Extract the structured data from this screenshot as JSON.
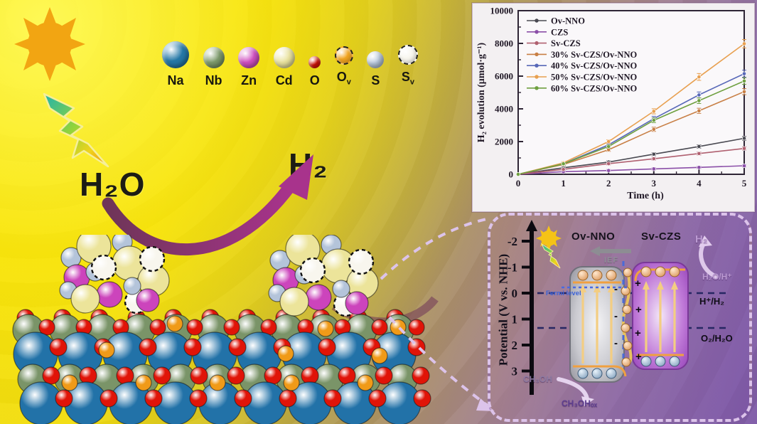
{
  "atom_legend": {
    "items": [
      {
        "symbol": "Na",
        "sub": "",
        "color": "#2477a6",
        "size": 38,
        "vacancy": false,
        "name": "sodium"
      },
      {
        "symbol": "Nb",
        "sub": "",
        "color": "#7d9a6b",
        "size": 30,
        "vacancy": false,
        "name": "niobium"
      },
      {
        "symbol": "Zn",
        "sub": "",
        "color": "#cf4fc0",
        "size": 30,
        "vacancy": false,
        "name": "zinc"
      },
      {
        "symbol": "Cd",
        "sub": "",
        "color": "#e9e29e",
        "size": 30,
        "vacancy": false,
        "name": "cadmium"
      },
      {
        "symbol": "O",
        "sub": "",
        "color": "#e01408",
        "size": 17,
        "vacancy": false,
        "name": "oxygen"
      },
      {
        "symbol": "O",
        "sub": "v",
        "color": "#f3a51f",
        "size": 22,
        "vacancy": true,
        "name": "oxygen-vacancy"
      },
      {
        "symbol": "S",
        "sub": "",
        "color": "#b7c7dc",
        "size": 24,
        "vacancy": false,
        "name": "sulfur"
      },
      {
        "symbol": "S",
        "sub": "v",
        "color": "#f8f6ee",
        "size": 24,
        "vacancy": true,
        "name": "sulfur-vacancy"
      }
    ]
  },
  "reaction": {
    "reactant": "H₂O",
    "product": "H₂"
  },
  "chart_data": {
    "type": "line",
    "x": [
      0,
      1,
      2,
      3,
      4,
      5
    ],
    "xlabel": "Time (h)",
    "ylabel": "H₂ evolution (μmol·g⁻¹)",
    "ylim": [
      0,
      10000
    ],
    "yticks": [
      0,
      2000,
      4000,
      6000,
      8000,
      10000
    ],
    "legend_position": "top-left",
    "grid": false,
    "series": [
      {
        "name": "Ov-NNO",
        "color": "#4a4a52",
        "values": [
          0,
          400,
          750,
          1230,
          1700,
          2200
        ]
      },
      {
        "name": "CZS",
        "color": "#8b4fa8",
        "values": [
          0,
          160,
          230,
          330,
          420,
          520
        ]
      },
      {
        "name": "Sv-CZS",
        "color": "#b06070",
        "values": [
          0,
          300,
          650,
          950,
          1270,
          1580
        ]
      },
      {
        "name": "30% Sv-CZS/Ov-NNO",
        "color": "#c87f45",
        "values": [
          0,
          600,
          1500,
          2750,
          3880,
          5050
        ]
      },
      {
        "name": "40% Sv-CZS/Ov-NNO",
        "color": "#5868b8",
        "values": [
          0,
          650,
          1800,
          3400,
          4850,
          6150
        ]
      },
      {
        "name": "50% Sv-CZS/Ov-NNO",
        "color": "#e8a050",
        "values": [
          0,
          700,
          2000,
          3850,
          5950,
          7980
        ]
      },
      {
        "name": "60% Sv-CZS/Ov-NNO",
        "color": "#6fa040",
        "values": [
          0,
          640,
          1700,
          3300,
          4500,
          5700
        ]
      }
    ]
  },
  "band_diagram": {
    "axis_label": "Potential (V vs. NHE)",
    "ticks": [
      -2,
      -1,
      0,
      1,
      2,
      3
    ],
    "bar_left_label": "Ov-NNO",
    "bar_right_label": "Sv-CZS",
    "ief_label": "IEF",
    "fermi_label": "Fermi level",
    "h2_label": "H₂",
    "h2o_h_label": "H₂O/H⁺",
    "h_h2_line_label": "H⁺/H₂",
    "o2_h2o_line_label": "O₂/H₂O",
    "ch3oh_label": "CH₃OH",
    "ch3oh_ox_label": "CH₃OHₒₓ"
  }
}
